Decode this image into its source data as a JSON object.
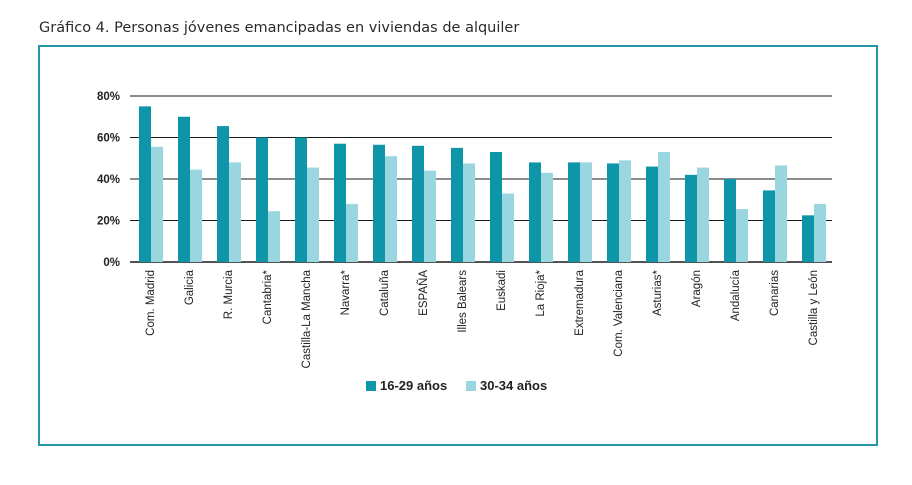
{
  "heading": "Gráfico 4. Personas jóvenes emancipadas en viviendas de alquiler",
  "chart_data": {
    "type": "bar",
    "title": "",
    "xlabel": "",
    "ylabel": "",
    "ylim": [
      0,
      80
    ],
    "yticks": [
      0,
      20,
      40,
      60,
      80
    ],
    "ytick_labels": [
      "0%",
      "20%",
      "40%",
      "60%",
      "80%"
    ],
    "grid": true,
    "legend_position": "bottom",
    "categories": [
      "Com. Madrid",
      "Galicia",
      "R. Murcia",
      "Cantabria*",
      "Castilla-La Mancha",
      "Navarra*",
      "Cataluña",
      "ESPAÑA",
      "Illes Balears",
      "Euskadi",
      "La Rioja*",
      "Extremadura",
      "Com. Valenciana",
      "Asturias*",
      "Aragón",
      "Andalucía",
      "Canarias",
      "Castilla y León"
    ],
    "series": [
      {
        "name": "16-29 años",
        "color": "#0f95a8",
        "values": [
          75,
          70,
          65.5,
          60,
          60,
          57,
          56.5,
          56,
          55,
          53,
          48,
          48,
          47.5,
          46,
          42,
          40,
          34.5,
          22.5
        ]
      },
      {
        "name": "30-34 años",
        "color": "#9ad6e0",
        "values": [
          55.5,
          44.5,
          48,
          24.5,
          45.5,
          28,
          51,
          44,
          47.5,
          33,
          43,
          48,
          49,
          53,
          45.5,
          25.5,
          46.5,
          28
        ]
      }
    ]
  }
}
